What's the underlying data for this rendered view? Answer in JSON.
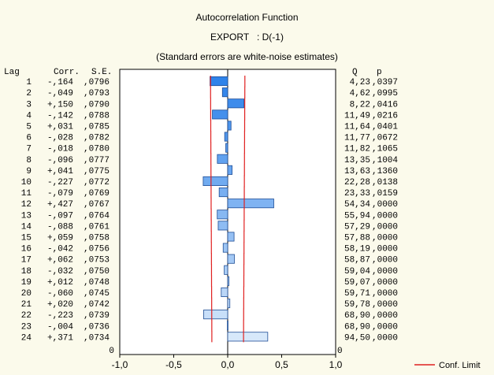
{
  "chart_data": {
    "type": "bar",
    "orientation": "horizontal",
    "title": "Autocorrelation Function",
    "subtitle": "EXPORT   : D(-1)",
    "note": "(Standard errors are white-noise estimates)",
    "columns": {
      "lag": "Lag",
      "corr": "Corr.",
      "se": "S.E.",
      "q": "Q",
      "p": "p"
    },
    "xlim": [
      -1.0,
      1.0
    ],
    "x_ticks": [
      "-1,0",
      "-0,5",
      "0,0",
      "0,5",
      "1,0"
    ],
    "x_tick_values": [
      -1.0,
      -0.5,
      0.0,
      0.5,
      1.0
    ],
    "rows": [
      {
        "lag": "1",
        "corr_label": "-,164",
        "se_label": ",0796",
        "q_label": "4,23",
        "p_label": ",0397",
        "corr": -0.164,
        "se": 0.0796
      },
      {
        "lag": "2",
        "corr_label": "-,049",
        "se_label": ",0793",
        "q_label": "4,62",
        "p_label": ",0995",
        "corr": -0.049,
        "se": 0.0793
      },
      {
        "lag": "3",
        "corr_label": "+,150",
        "se_label": ",0790",
        "q_label": "8,22",
        "p_label": ",0416",
        "corr": 0.15,
        "se": 0.079
      },
      {
        "lag": "4",
        "corr_label": "-,142",
        "se_label": ",0788",
        "q_label": "11,49",
        "p_label": ",0216",
        "corr": -0.142,
        "se": 0.0788
      },
      {
        "lag": "5",
        "corr_label": "+,031",
        "se_label": ",0785",
        "q_label": "11,64",
        "p_label": ",0401",
        "corr": 0.031,
        "se": 0.0785
      },
      {
        "lag": "6",
        "corr_label": "-,028",
        "se_label": ",0782",
        "q_label": "11,77",
        "p_label": ",0672",
        "corr": -0.028,
        "se": 0.0782
      },
      {
        "lag": "7",
        "corr_label": "-,018",
        "se_label": ",0780",
        "q_label": "11,82",
        "p_label": ",1065",
        "corr": -0.018,
        "se": 0.078
      },
      {
        "lag": "8",
        "corr_label": "-,096",
        "se_label": ",0777",
        "q_label": "13,35",
        "p_label": ",1004",
        "corr": -0.096,
        "se": 0.0777
      },
      {
        "lag": "9",
        "corr_label": "+,041",
        "se_label": ",0775",
        "q_label": "13,63",
        "p_label": ",1360",
        "corr": 0.041,
        "se": 0.0775
      },
      {
        "lag": "10",
        "corr_label": "-,227",
        "se_label": ",0772",
        "q_label": "22,28",
        "p_label": ",0138",
        "corr": -0.227,
        "se": 0.0772
      },
      {
        "lag": "11",
        "corr_label": "-,079",
        "se_label": ",0769",
        "q_label": "23,33",
        "p_label": ",0159",
        "corr": -0.079,
        "se": 0.0769
      },
      {
        "lag": "12",
        "corr_label": "+,427",
        "se_label": ",0767",
        "q_label": "54,34",
        "p_label": ",0000",
        "corr": 0.427,
        "se": 0.0767
      },
      {
        "lag": "13",
        "corr_label": "-,097",
        "se_label": ",0764",
        "q_label": "55,94",
        "p_label": ",0000",
        "corr": -0.097,
        "se": 0.0764
      },
      {
        "lag": "14",
        "corr_label": "-,088",
        "se_label": ",0761",
        "q_label": "57,29",
        "p_label": ",0000",
        "corr": -0.088,
        "se": 0.0761
      },
      {
        "lag": "15",
        "corr_label": "+,059",
        "se_label": ",0758",
        "q_label": "57,88",
        "p_label": ",0000",
        "corr": 0.059,
        "se": 0.0758
      },
      {
        "lag": "16",
        "corr_label": "-,042",
        "se_label": ",0756",
        "q_label": "58,19",
        "p_label": ",0000",
        "corr": -0.042,
        "se": 0.0756
      },
      {
        "lag": "17",
        "corr_label": "+,062",
        "se_label": ",0753",
        "q_label": "58,87",
        "p_label": ",0000",
        "corr": 0.062,
        "se": 0.0753
      },
      {
        "lag": "18",
        "corr_label": "-,032",
        "se_label": ",0750",
        "q_label": "59,04",
        "p_label": ",0000",
        "corr": -0.032,
        "se": 0.075
      },
      {
        "lag": "19",
        "corr_label": "+,012",
        "se_label": ",0748",
        "q_label": "59,07",
        "p_label": ",0000",
        "corr": 0.012,
        "se": 0.0748
      },
      {
        "lag": "20",
        "corr_label": "-,060",
        "se_label": ",0745",
        "q_label": "59,71",
        "p_label": ",0000",
        "corr": -0.06,
        "se": 0.0745
      },
      {
        "lag": "21",
        "corr_label": "+,020",
        "se_label": ",0742",
        "q_label": "59,78",
        "p_label": ",0000",
        "corr": 0.02,
        "se": 0.0742
      },
      {
        "lag": "22",
        "corr_label": "-,223",
        "se_label": ",0739",
        "q_label": "68,90",
        "p_label": ",0000",
        "corr": -0.223,
        "se": 0.0739
      },
      {
        "lag": "23",
        "corr_label": "-,004",
        "se_label": ",0736",
        "q_label": "68,90",
        "p_label": ",0000",
        "corr": -0.004,
        "se": 0.0736
      },
      {
        "lag": "24",
        "corr_label": "+,371",
        "se_label": ",0734",
        "q_label": "94,50",
        "p_label": ",0000",
        "corr": 0.371,
        "se": 0.0734
      }
    ],
    "bottom_zero_left": "0",
    "bottom_zero_right": "0",
    "legend": {
      "label": "Conf. Limit",
      "placement": "bottom-right"
    },
    "colors": {
      "bar_fill_dark": "#2f83ea",
      "bar_fill_light": "#d7e8fa",
      "bar_stroke": "#1f4e96",
      "conf_limit": "#e02020",
      "background": "#fbfaeb",
      "plot_background": "#ffffff"
    }
  }
}
